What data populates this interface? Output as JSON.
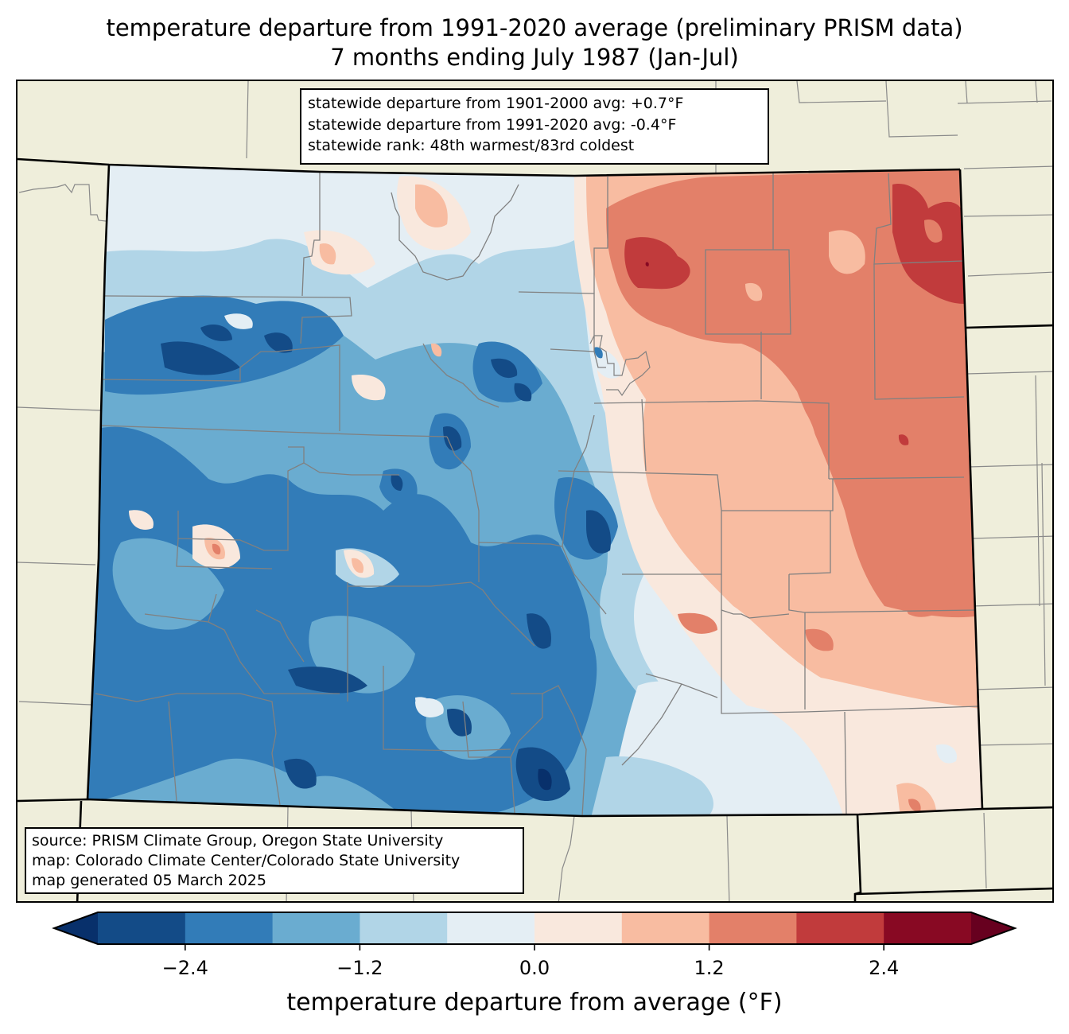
{
  "title": {
    "line1": "temperature departure from 1991-2020 average (preliminary PRISM data)",
    "line2": "7 months ending July 1987 (Jan-Jul)"
  },
  "stats_box": {
    "line1": "statewide departure from 1901-2000 avg: +0.7°F",
    "line2": "statewide departure from 1991-2020 avg: -0.4°F",
    "line3": "statewide rank: 48th warmest/83rd coldest"
  },
  "source_box": {
    "line1": "source: PRISM Climate Group, Oregon State University",
    "line2": "map: Colorado Climate Center/Colorado State University",
    "line3": "map generated 05 March 2025"
  },
  "map": {
    "region": "Colorado",
    "variable": "temperature departure from 1991-2020 average",
    "background_color": "#efeedb",
    "county_line_color": "#808080",
    "state_line_color": "#000000",
    "pattern_summary": "West and central mountains below average (blue, down to below -2.4°F); eastern plains above average (red, up to +2.4°F in the northeast)"
  },
  "chart_data": {
    "type": "heatmap",
    "title": "temperature departure from 1991-2020 average (preliminary PRISM data)",
    "subtitle": "7 months ending July 1987 (Jan-Jul)",
    "colorbar": {
      "label": "temperature departure from average (°F)",
      "ticks": [
        "−2.4",
        "−1.2",
        "0.0",
        "1.2",
        "2.4"
      ],
      "tick_values": [
        -2.4,
        -1.2,
        0.0,
        1.2,
        2.4
      ],
      "boundaries": [
        -3.0,
        -2.4,
        -1.8,
        -1.2,
        -0.6,
        0.0,
        0.6,
        1.2,
        1.8,
        2.4,
        3.0
      ],
      "extend": "both",
      "under_color": "#08306b",
      "over_color": "#67001f",
      "colors": [
        "#134b87",
        "#327cb8",
        "#6aacd0",
        "#b1d5e7",
        "#e4eef4",
        "#f9e8dd",
        "#f8bca1",
        "#e38069",
        "#c13b3c",
        "#880923"
      ],
      "orientation": "horizontal",
      "placement": "bottom"
    }
  }
}
